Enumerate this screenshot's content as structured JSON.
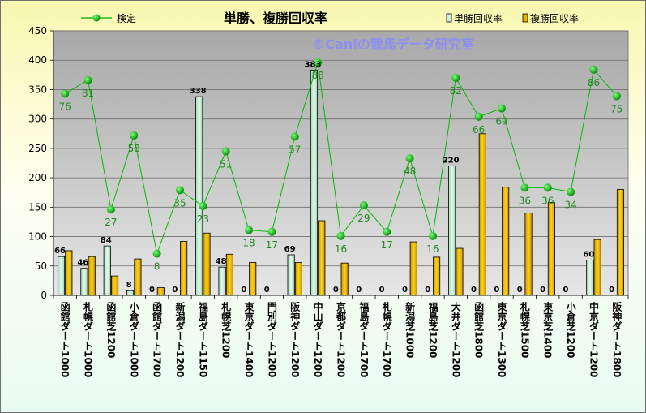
{
  "chart_data": {
    "type": "bar",
    "title": "単勝、複勝回収率",
    "watermark": "©Caniの競馬データ研究室",
    "ylim": [
      0,
      450
    ],
    "yticks": [
      0,
      50,
      100,
      150,
      200,
      250,
      300,
      350,
      400,
      450
    ],
    "categories": [
      "函館ダート1000",
      "札幌ダート1000",
      "函館芝1200",
      "小倉ダート1000",
      "函館ダート1700",
      "新潟ダート1200",
      "福島ダート1150",
      "札幌芝1200",
      "東京ダート1400",
      "門別ダート1200",
      "阪神ダート1200",
      "中山ダート1200",
      "京都ダート1200",
      "福島ダート1700",
      "札幌ダート1700",
      "新潟芝1000",
      "福島芝1200",
      "大井ダート1200",
      "函館芝1800",
      "東京ダート1300",
      "札幌芝1500",
      "東京芝1400",
      "小倉芝1200",
      "中京ダート1200",
      "阪神ダート1800"
    ],
    "series": [
      {
        "name": "単勝回収率",
        "type": "bar",
        "color": "#cfeed8",
        "values": [
          66,
          46,
          84,
          8,
          0,
          0,
          338,
          48,
          0,
          0,
          69,
          383,
          0,
          0,
          0,
          0,
          0,
          220,
          0,
          0,
          0,
          0,
          0,
          60,
          0
        ],
        "labels": [
          "66",
          "46",
          "84",
          "8",
          "0",
          "0",
          "338",
          "48",
          "0",
          "0",
          "69",
          "383",
          "0",
          "0",
          "0",
          "0",
          "0",
          "220",
          "0",
          "0",
          "0",
          "0",
          "0",
          "60",
          "0"
        ]
      },
      {
        "name": "複勝回収率",
        "type": "bar",
        "color": "#e8b400",
        "values": [
          76,
          66,
          33,
          62,
          13,
          92,
          106,
          70,
          56,
          0,
          56,
          127,
          55,
          0,
          0,
          91,
          65,
          80,
          275,
          184,
          140,
          158,
          0,
          95,
          180
        ]
      },
      {
        "name": "検定",
        "type": "line",
        "color": "#00aa00",
        "values": [
          343,
          366,
          146,
          272,
          71,
          179,
          152,
          245,
          111,
          108,
          270,
          396,
          101,
          153,
          108,
          233,
          101,
          370,
          304,
          318,
          183,
          183,
          176,
          384,
          339
        ],
        "labels": [
          "76",
          "81",
          "27",
          "58",
          "8",
          "35",
          "23",
          "51",
          "18",
          "17",
          "57",
          "88",
          "16",
          "29",
          "17",
          "48",
          "16",
          "82",
          "66",
          "69",
          "36",
          "36",
          "34",
          "86",
          "75"
        ]
      }
    ],
    "legend": {
      "position": "top"
    }
  }
}
